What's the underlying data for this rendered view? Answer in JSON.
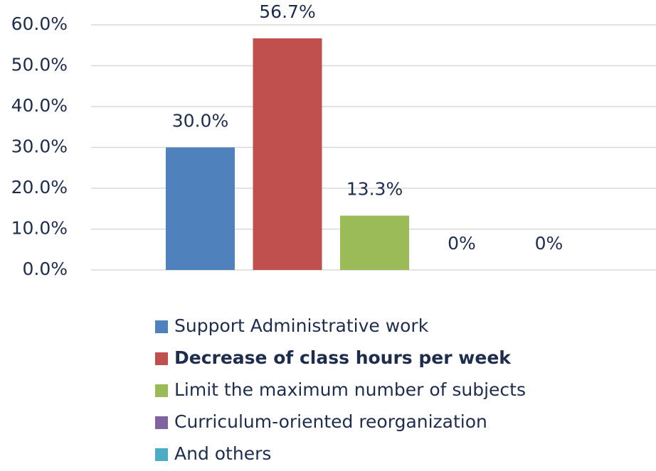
{
  "chart_data": {
    "type": "bar",
    "series": [
      {
        "name": "Support Administrative work",
        "color": "#4f81bd",
        "values": [
          30.0
        ],
        "value_labels": [
          "30.0%"
        ]
      },
      {
        "name": "Decrease of class hours per week",
        "color": "#c0504d",
        "values": [
          56.7
        ],
        "value_labels": [
          "56.7%"
        ]
      },
      {
        "name": "Limit the maximum number of subjects",
        "color": "#9bbb59",
        "values": [
          13.3
        ],
        "value_labels": [
          "13.3%"
        ]
      },
      {
        "name": "Curriculum-oriented reorganization",
        "color": "#8064a2",
        "values": [
          0
        ],
        "value_labels": [
          "0%"
        ]
      },
      {
        "name": "And others",
        "color": "#4bacc6",
        "values": [
          0
        ],
        "value_labels": [
          "0%"
        ]
      }
    ],
    "ylim": [
      0,
      60
    ],
    "yticks": [
      {
        "value": 0,
        "label": "0.0%"
      },
      {
        "value": 10,
        "label": "10.0%"
      },
      {
        "value": 20,
        "label": "20.0%"
      },
      {
        "value": 30,
        "label": "30.0%"
      },
      {
        "value": 40,
        "label": "40.0%"
      },
      {
        "value": 50,
        "label": "50.0%"
      },
      {
        "value": 60,
        "label": "60.0%"
      }
    ],
    "grid": true,
    "legend": "bottom"
  }
}
